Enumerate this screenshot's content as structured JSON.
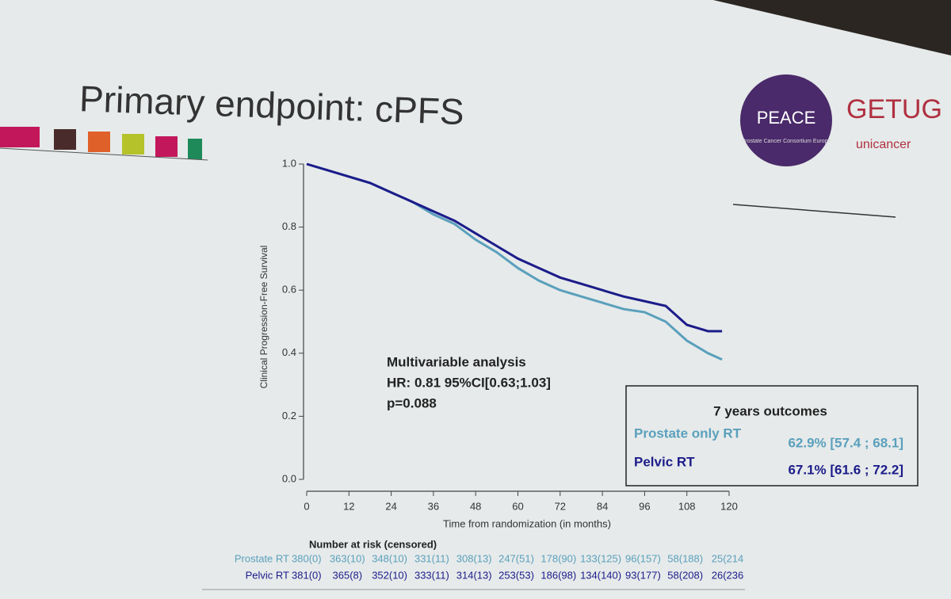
{
  "slide": {
    "title": "Primary endpoint: cPFS"
  },
  "logos": {
    "peace": "PEACE",
    "consortium": "Prostate Cancer Consortium Europe",
    "getug": "GETUG",
    "unicancer": "unicancer"
  },
  "chart_data": {
    "type": "line",
    "y_label": "Clinical Progression-Free Survival",
    "x_label": "Time from randomization (in months)",
    "x": [
      0,
      6,
      12,
      18,
      24,
      30,
      36,
      42,
      48,
      54,
      60,
      66,
      72,
      78,
      84,
      90,
      96,
      102,
      108,
      114,
      118
    ],
    "series": [
      {
        "name": "Prostate only RT",
        "color": "#5aa0bc",
        "values": [
          1.0,
          0.98,
          0.96,
          0.94,
          0.91,
          0.88,
          0.84,
          0.81,
          0.76,
          0.72,
          0.67,
          0.63,
          0.6,
          0.58,
          0.56,
          0.54,
          0.53,
          0.5,
          0.44,
          0.4,
          0.38
        ]
      },
      {
        "name": "Pelvic RT",
        "color": "#1c1c8a",
        "values": [
          1.0,
          0.98,
          0.96,
          0.94,
          0.91,
          0.88,
          0.85,
          0.82,
          0.78,
          0.74,
          0.7,
          0.67,
          0.64,
          0.62,
          0.6,
          0.58,
          0.565,
          0.55,
          0.49,
          0.47,
          0.47
        ]
      }
    ],
    "xlim": [
      0,
      120
    ],
    "xticks": [
      0,
      12,
      24,
      36,
      48,
      60,
      72,
      84,
      96,
      108,
      120
    ],
    "ylim": [
      0,
      1
    ],
    "yticks": [
      {
        "value": 0,
        "label": "0.0"
      },
      {
        "value": 0.2,
        "label": "0.2"
      },
      {
        "value": 0.4,
        "label": "0.4"
      },
      {
        "value": 0.6,
        "label": "0.6"
      },
      {
        "value": 0.8,
        "label": "0.8"
      },
      {
        "value": 1,
        "label": "1.0"
      }
    ],
    "grid": false,
    "annotation": [
      "Multivariable analysis",
      "HR: 0.81  95%CI[0.63;1.03]",
      "p=0.088"
    ],
    "outcomes": {
      "title": "7 years outcomes",
      "values": [
        "62.9% [57.4 ; 68.1]",
        "67.1% [61.6 ; 72.2]"
      ]
    },
    "risk_table": {
      "title": "Number at risk (censored)",
      "rows": [
        {
          "label": "Prostate RT",
          "cells": [
            "380(0)",
            "363(10)",
            "348(10)",
            "331(11)",
            "308(13)",
            "247(51)",
            "178(90)",
            "133(125)",
            "96(157)",
            "58(188)",
            "25(214"
          ]
        },
        {
          "label": "Pelvic RT",
          "cells": [
            "381(0)",
            "365(8)",
            "352(10)",
            "333(11)",
            "314(13)",
            "253(53)",
            "186(98)",
            "134(140)",
            "93(177)",
            "58(208)",
            "26(236"
          ]
        }
      ]
    }
  }
}
